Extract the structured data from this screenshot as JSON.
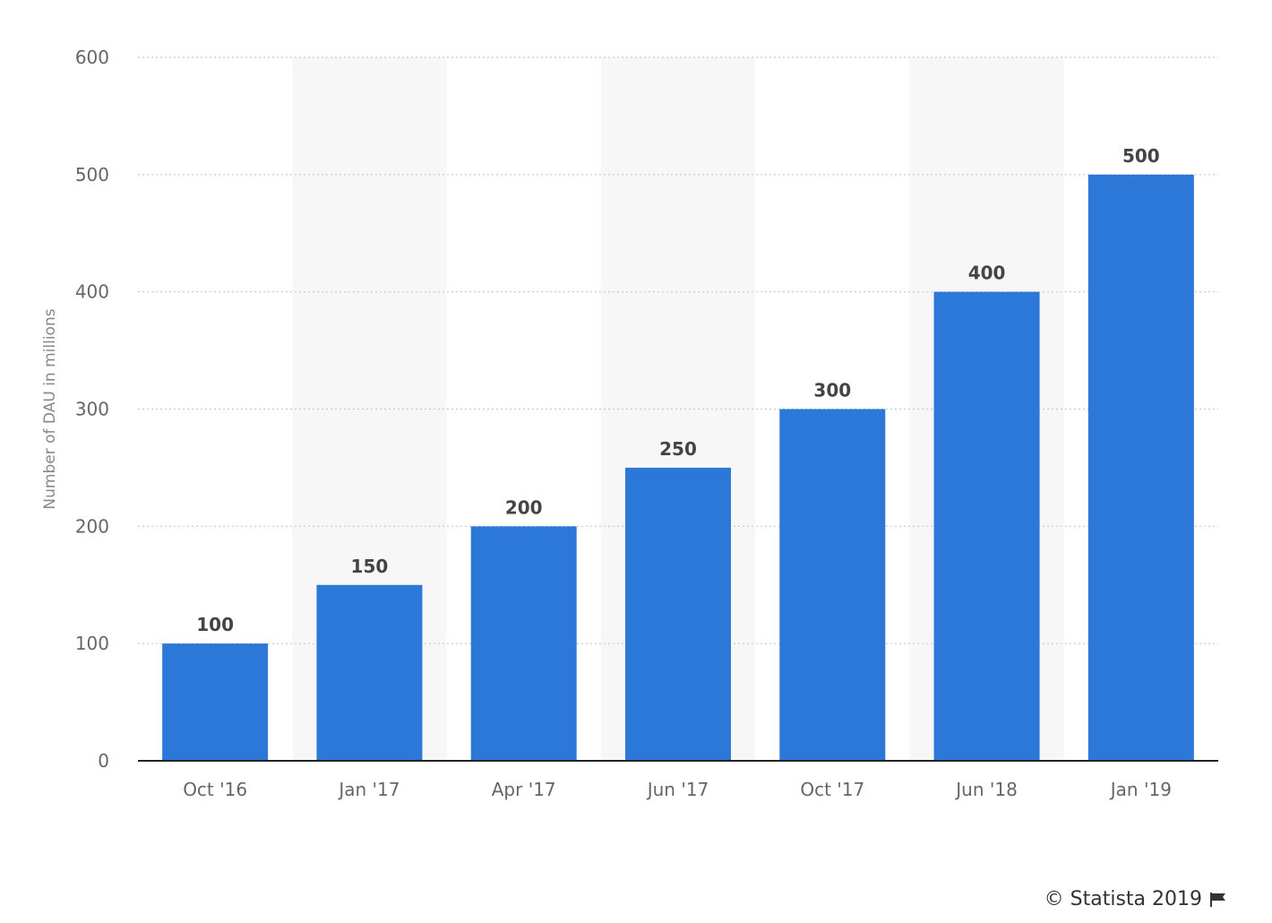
{
  "chart_data": {
    "type": "bar",
    "title": "",
    "xlabel": "",
    "ylabel": "Number of DAU in millions",
    "categories": [
      "Oct '16",
      "Jan '17",
      "Apr '17",
      "Jun '17",
      "Oct '17",
      "Jun '18",
      "Jan '19"
    ],
    "values": [
      100,
      150,
      200,
      250,
      300,
      400,
      500
    ],
    "value_labels": [
      "100",
      "150",
      "200",
      "250",
      "300",
      "400",
      "500"
    ],
    "ylim": [
      0,
      600
    ],
    "yticks": [
      0,
      100,
      200,
      300,
      400,
      500,
      600
    ],
    "grid": true,
    "bar_color": "#2c78d9",
    "legend": "none"
  },
  "credit": {
    "text": "© Statista 2019",
    "icon": "flag-icon"
  }
}
